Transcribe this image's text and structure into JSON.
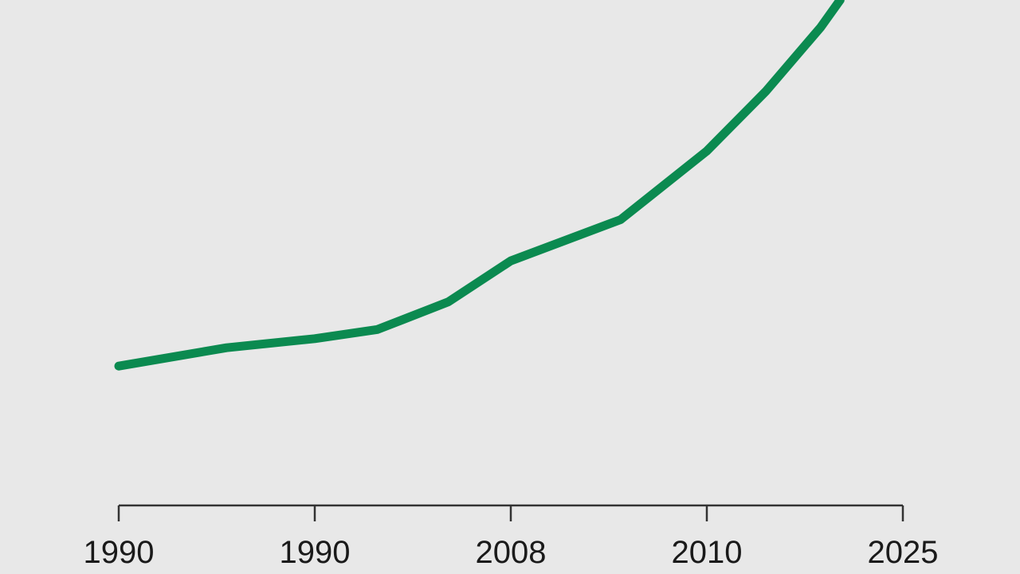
{
  "chart_data": {
    "type": "line",
    "title": "",
    "xlabel": "",
    "ylabel": "",
    "x_tick_labels": [
      "1990",
      "1990",
      "2008",
      "2010",
      "2025"
    ],
    "x_positions": [
      0,
      1,
      2,
      3,
      4
    ],
    "xlim": [
      0,
      4
    ],
    "ylim": [
      0,
      100
    ],
    "grid": false,
    "legend": "none",
    "series": [
      {
        "color": "#0b8a50",
        "points": [
          {
            "x": 0.0,
            "y": 20
          },
          {
            "x": 0.55,
            "y": 24
          },
          {
            "x": 1.0,
            "y": 26
          },
          {
            "x": 1.32,
            "y": 28
          },
          {
            "x": 1.68,
            "y": 34
          },
          {
            "x": 2.0,
            "y": 43
          },
          {
            "x": 2.56,
            "y": 52
          },
          {
            "x": 3.0,
            "y": 67
          },
          {
            "x": 3.3,
            "y": 80
          },
          {
            "x": 3.58,
            "y": 94
          },
          {
            "x": 3.68,
            "y": 100
          }
        ]
      }
    ]
  }
}
